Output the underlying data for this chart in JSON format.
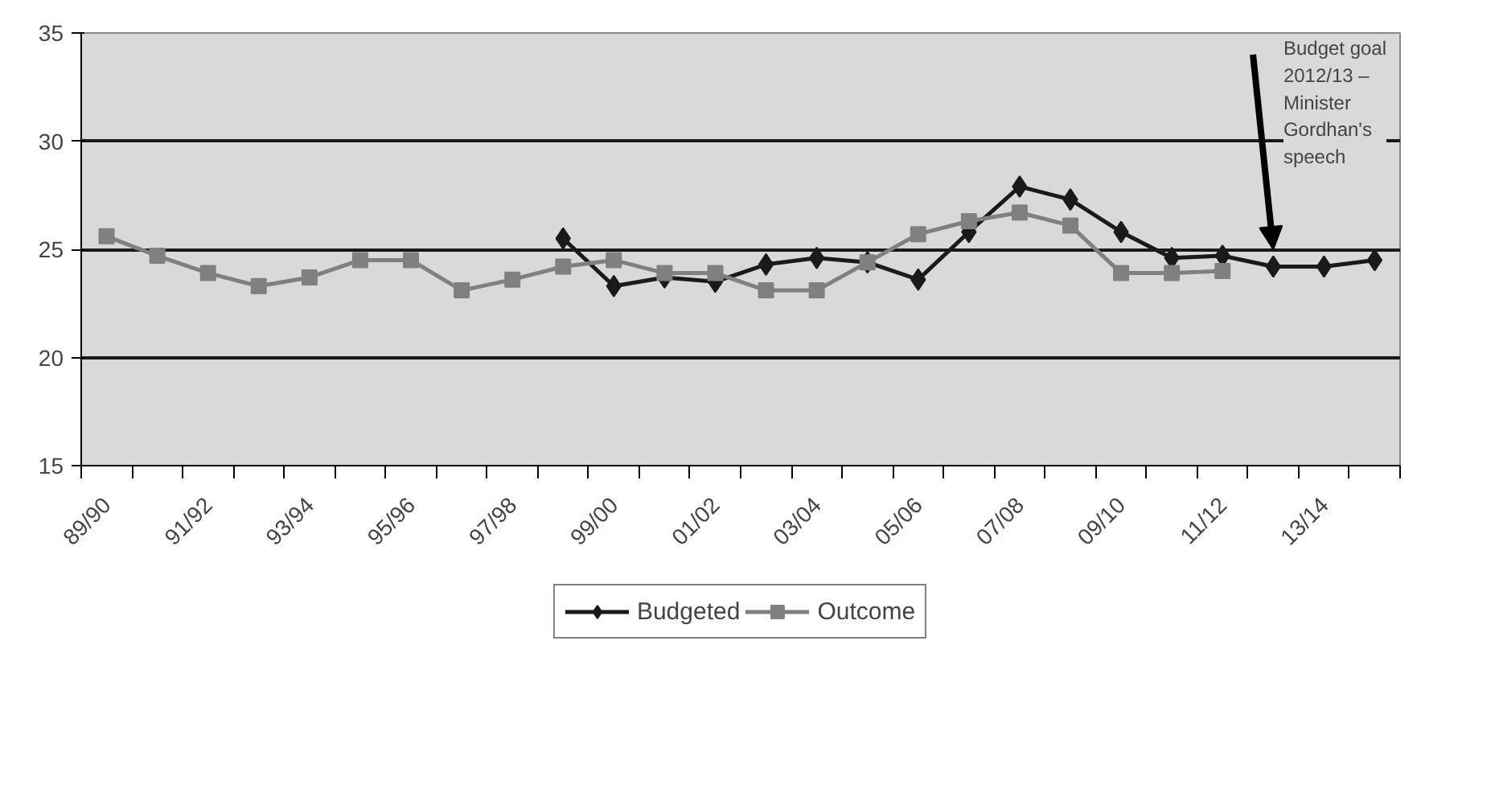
{
  "chart_data": {
    "type": "line",
    "categories": [
      "89/90",
      null,
      "91/92",
      null,
      "93/94",
      null,
      "95/96",
      null,
      "97/98",
      null,
      "99/00",
      null,
      "01/02",
      null,
      "03/04",
      null,
      "05/06",
      null,
      "07/08",
      null,
      "09/10",
      null,
      "11/12",
      null,
      "13/14",
      null
    ],
    "ylim": [
      15,
      35
    ],
    "yticks": [
      15,
      20,
      25,
      30,
      35
    ],
    "grid": "y",
    "legend": "bottom",
    "line_style": "solid",
    "series": [
      {
        "name": "Budgeted",
        "color": "#1a1a1a",
        "marker": "diamond",
        "values": [
          null,
          null,
          null,
          null,
          null,
          null,
          null,
          null,
          null,
          25.5,
          23.3,
          23.7,
          23.5,
          24.3,
          24.6,
          24.4,
          23.6,
          25.8,
          27.9,
          27.3,
          25.8,
          24.6,
          24.7,
          24.2,
          24.2,
          24.5
        ]
      },
      {
        "name": "Outcome",
        "color": "#808080",
        "marker": "square",
        "values": [
          25.6,
          24.7,
          23.9,
          23.3,
          23.7,
          24.5,
          24.5,
          23.1,
          23.6,
          24.2,
          24.5,
          23.9,
          23.9,
          23.1,
          23.1,
          24.4,
          25.7,
          26.3,
          26.7,
          26.1,
          23.9,
          23.9,
          24.0,
          null,
          null,
          null
        ]
      }
    ],
    "annotations": [
      "Budget goal 2012/13 – Minister Gordhan's speech"
    ]
  }
}
